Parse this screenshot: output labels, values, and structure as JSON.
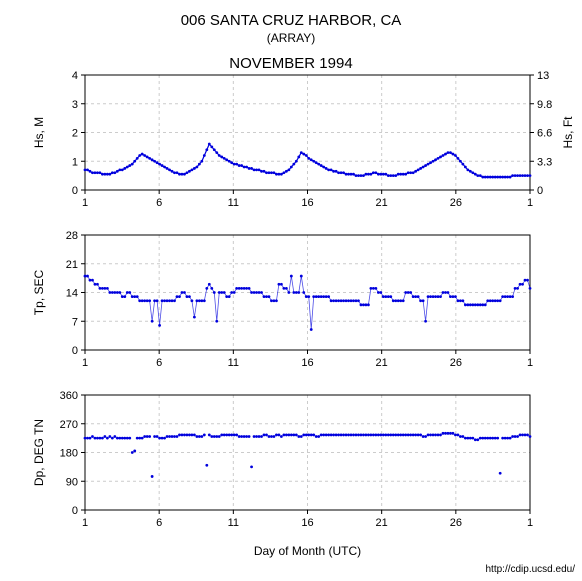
{
  "title": "006 SANTA CRUZ HARBOR, CA",
  "subtitle": "(ARRAY)",
  "month": "NOVEMBER 1994",
  "xlabel": "Day of Month (UTC)",
  "footer": "http://cdip.ucsd.edu/",
  "background_color": "#ffffff",
  "grid_color": "#cccccc",
  "axis_color": "#000000",
  "data_color": "#0000dd",
  "x_ticks": [
    1,
    6,
    11,
    16,
    21,
    26,
    1
  ],
  "x_min": 1,
  "x_max": 31,
  "panel1": {
    "ylabel_left": "Hs, M",
    "ylabel_right": "Hs, Ft",
    "y_min": 0,
    "y_max": 4,
    "y_ticks_left": [
      0,
      1,
      2,
      3,
      4
    ],
    "y_ticks_right": [
      0,
      3.3,
      6.6,
      9.8,
      13
    ],
    "data_y": [
      0.7,
      0.7,
      0.65,
      0.6,
      0.6,
      0.6,
      0.6,
      0.55,
      0.55,
      0.55,
      0.55,
      0.6,
      0.6,
      0.65,
      0.7,
      0.7,
      0.75,
      0.8,
      0.85,
      0.9,
      1.0,
      1.1,
      1.2,
      1.25,
      1.2,
      1.15,
      1.1,
      1.05,
      1.0,
      0.95,
      0.9,
      0.85,
      0.8,
      0.75,
      0.7,
      0.65,
      0.6,
      0.6,
      0.55,
      0.55,
      0.55,
      0.6,
      0.65,
      0.7,
      0.75,
      0.8,
      0.9,
      1.0,
      1.2,
      1.4,
      1.6,
      1.5,
      1.4,
      1.3,
      1.2,
      1.15,
      1.1,
      1.05,
      1.0,
      0.95,
      0.9,
      0.9,
      0.85,
      0.85,
      0.8,
      0.8,
      0.75,
      0.75,
      0.7,
      0.7,
      0.7,
      0.65,
      0.65,
      0.6,
      0.6,
      0.6,
      0.6,
      0.55,
      0.55,
      0.55,
      0.6,
      0.65,
      0.7,
      0.8,
      0.9,
      1.0,
      1.15,
      1.3,
      1.25,
      1.2,
      1.1,
      1.05,
      1.0,
      0.95,
      0.9,
      0.85,
      0.8,
      0.75,
      0.7,
      0.7,
      0.65,
      0.65,
      0.6,
      0.6,
      0.6,
      0.55,
      0.55,
      0.55,
      0.55,
      0.5,
      0.5,
      0.5,
      0.5,
      0.55,
      0.55,
      0.55,
      0.6,
      0.6,
      0.55,
      0.55,
      0.55,
      0.55,
      0.5,
      0.5,
      0.5,
      0.5,
      0.55,
      0.55,
      0.55,
      0.55,
      0.6,
      0.6,
      0.6,
      0.65,
      0.7,
      0.75,
      0.8,
      0.85,
      0.9,
      0.95,
      1.0,
      1.05,
      1.1,
      1.15,
      1.2,
      1.25,
      1.3,
      1.3,
      1.25,
      1.2,
      1.1,
      1.0,
      0.9,
      0.8,
      0.7,
      0.65,
      0.6,
      0.55,
      0.5,
      0.5,
      0.45,
      0.45,
      0.45,
      0.45,
      0.45,
      0.45,
      0.45,
      0.45,
      0.45,
      0.45,
      0.45,
      0.45,
      0.5,
      0.5,
      0.5,
      0.5,
      0.5,
      0.5,
      0.5,
      0.5
    ]
  },
  "panel2": {
    "ylabel_left": "Tp, SEC",
    "y_min": 0,
    "y_max": 28,
    "y_ticks_left": [
      0,
      7,
      14,
      21,
      28
    ],
    "data_y": [
      18,
      18,
      17,
      17,
      16,
      16,
      15,
      15,
      15,
      15,
      14,
      14,
      14,
      14,
      14,
      13,
      13,
      14,
      14,
      13,
      13,
      13,
      12,
      12,
      12,
      12,
      12,
      7,
      12,
      12,
      6,
      12,
      12,
      12,
      12,
      12,
      12,
      13,
      13,
      14,
      14,
      13,
      13,
      12,
      8,
      12,
      12,
      12,
      12,
      15,
      16,
      15,
      14,
      7,
      14,
      14,
      14,
      13,
      13,
      14,
      14,
      15,
      15,
      15,
      15,
      15,
      15,
      14,
      14,
      14,
      14,
      14,
      13,
      13,
      13,
      12,
      12,
      12,
      16,
      16,
      15,
      15,
      14,
      18,
      14,
      14,
      14,
      18,
      14,
      13,
      13,
      5,
      13,
      13,
      13,
      13,
      13,
      13,
      13,
      12,
      12,
      12,
      12,
      12,
      12,
      12,
      12,
      12,
      12,
      12,
      12,
      11,
      11,
      11,
      11,
      15,
      15,
      15,
      14,
      14,
      13,
      13,
      13,
      13,
      12,
      12,
      12,
      12,
      12,
      14,
      14,
      14,
      13,
      13,
      13,
      12,
      12,
      7,
      13,
      13,
      13,
      13,
      13,
      13,
      14,
      14,
      14,
      13,
      13,
      13,
      12,
      12,
      12,
      11,
      11,
      11,
      11,
      11,
      11,
      11,
      11,
      11,
      12,
      12,
      12,
      12,
      12,
      12,
      13,
      13,
      13,
      13,
      13,
      15,
      15,
      16,
      16,
      17,
      17,
      15
    ]
  },
  "panel3": {
    "ylabel_left": "Dp, DEG TN",
    "y_min": 0,
    "y_max": 360,
    "y_ticks_left": [
      0,
      90,
      180,
      270,
      360
    ],
    "data_y": [
      225,
      225,
      225,
      230,
      225,
      225,
      225,
      225,
      230,
      225,
      230,
      225,
      230,
      225,
      225,
      225,
      225,
      225,
      225,
      180,
      185,
      225,
      225,
      225,
      230,
      230,
      230,
      105,
      230,
      230,
      225,
      225,
      225,
      230,
      230,
      230,
      230,
      230,
      235,
      235,
      235,
      235,
      235,
      235,
      235,
      230,
      230,
      230,
      235,
      140,
      235,
      230,
      230,
      230,
      230,
      235,
      235,
      235,
      235,
      235,
      235,
      235,
      230,
      230,
      230,
      230,
      230,
      135,
      230,
      230,
      230,
      230,
      235,
      235,
      230,
      230,
      230,
      235,
      235,
      230,
      235,
      235,
      235,
      235,
      235,
      235,
      230,
      230,
      235,
      235,
      235,
      235,
      235,
      230,
      230,
      235,
      235,
      235,
      235,
      235,
      235,
      235,
      235,
      235,
      235,
      235,
      235,
      235,
      235,
      235,
      235,
      235,
      235,
      235,
      235,
      235,
      235,
      235,
      235,
      235,
      235,
      235,
      235,
      235,
      235,
      235,
      235,
      235,
      235,
      235,
      235,
      235,
      235,
      235,
      235,
      235,
      230,
      230,
      235,
      235,
      235,
      235,
      235,
      235,
      240,
      240,
      240,
      240,
      240,
      235,
      235,
      230,
      230,
      225,
      225,
      225,
      225,
      220,
      220,
      225,
      225,
      225,
      225,
      225,
      225,
      225,
      225,
      115,
      225,
      225,
      225,
      225,
      230,
      230,
      230,
      235,
      235,
      235,
      235,
      230
    ]
  }
}
